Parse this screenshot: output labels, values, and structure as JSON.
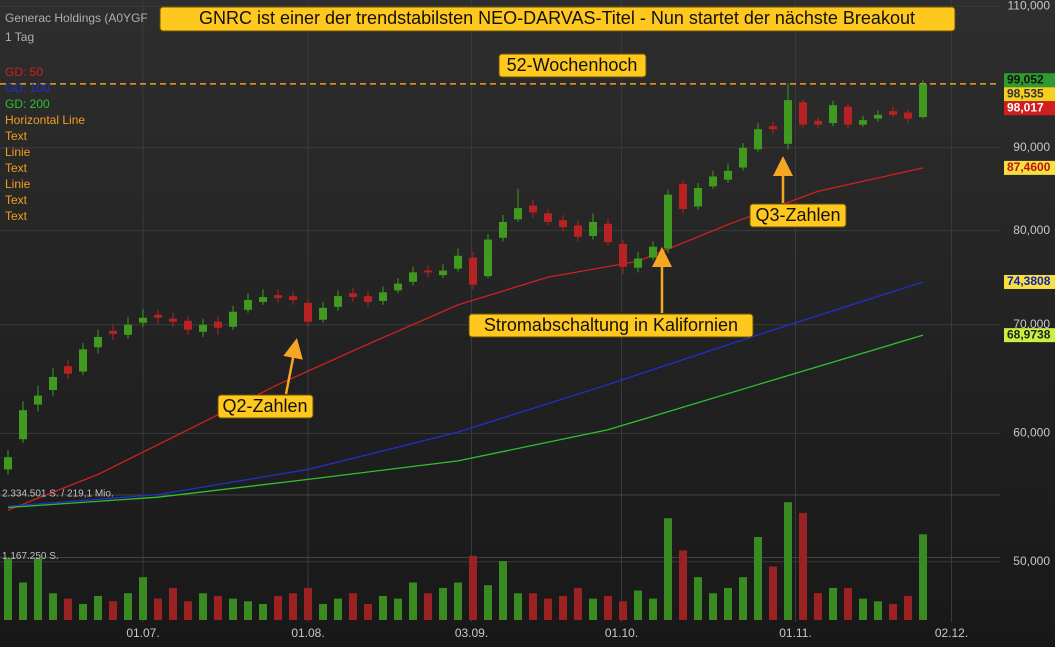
{
  "chart_data": {
    "type": "candlestick",
    "title": "GNRC ist einer der trendstabilsten NEO-DARVAS-Titel - Nun startet der nächste Breakout",
    "instrument": "Generac Holdings (A0YGF",
    "interval": "1 Tag",
    "log_scale": true,
    "grid": true,
    "ylim": [
      45.9,
      111
    ],
    "yticks": [
      {
        "value": 110,
        "label": "110,000"
      },
      {
        "value": 90,
        "label": "90,000"
      },
      {
        "value": 80,
        "label": "80,000"
      },
      {
        "value": 70,
        "label": "70,000"
      },
      {
        "value": 60,
        "label": "60,000"
      },
      {
        "value": 50,
        "label": "50,000"
      }
    ],
    "xticks": [
      {
        "value": 9,
        "label": "01.07."
      },
      {
        "value": 20,
        "label": "01.08."
      },
      {
        "value": 30.9,
        "label": "03.09."
      },
      {
        "value": 40.9,
        "label": "01.10."
      },
      {
        "value": 52.5,
        "label": "01.11."
      },
      {
        "value": 62.9,
        "label": "02.12."
      }
    ],
    "up_color": "#3f9a1f",
    "down_color": "#b82222",
    "open": [
      57.0,
      59.5,
      62.5,
      63.8,
      66.0,
      65.5,
      67.8,
      69.4,
      69.0,
      70.2,
      71.0,
      70.6,
      70.4,
      69.3,
      70.3,
      69.8,
      71.5,
      72.3,
      73.0,
      72.9,
      72.2,
      70.5,
      71.8,
      73.2,
      72.9,
      72.4,
      73.5,
      74.4,
      75.6,
      75.1,
      75.8,
      77.0,
      75.0,
      79.2,
      81.3,
      82.9,
      82.0,
      81.2,
      80.6,
      79.4,
      80.8,
      78.5,
      75.9,
      77.0,
      78.0,
      85.5,
      82.8,
      85.2,
      86.0,
      87.5,
      89.8,
      92.8,
      90.5,
      96.0,
      93.5,
      93.2,
      95.4,
      93.0,
      93.8,
      94.8,
      94.6,
      94.0
    ],
    "high": [
      58.6,
      62.8,
      64.2,
      65.8,
      66.6,
      68.2,
      69.5,
      70.0,
      70.8,
      71.6,
      71.5,
      71.2,
      70.8,
      70.6,
      70.8,
      71.9,
      73.2,
      73.6,
      73.6,
      73.4,
      72.6,
      72.3,
      73.5,
      73.8,
      73.4,
      73.9,
      74.8,
      76.0,
      76.2,
      76.3,
      78.0,
      77.6,
      79.6,
      81.8,
      84.9,
      83.6,
      82.5,
      81.8,
      81.2,
      82.0,
      81.4,
      78.9,
      77.6,
      78.8,
      84.8,
      86.0,
      85.6,
      87.1,
      88.0,
      90.6,
      93.2,
      93.4,
      98.6,
      96.4,
      94.0,
      96.2,
      95.9,
      94.2,
      94.9,
      95.4,
      95.0,
      99.052
    ],
    "low": [
      56.6,
      59.2,
      61.9,
      63.3,
      64.8,
      65.2,
      67.2,
      68.5,
      68.6,
      69.8,
      70.1,
      69.8,
      69.0,
      68.8,
      69.0,
      69.5,
      71.2,
      72.0,
      72.2,
      72.0,
      69.8,
      70.2,
      71.4,
      72.3,
      71.8,
      72.0,
      73.2,
      74.0,
      74.9,
      74.8,
      75.5,
      73.6,
      74.8,
      78.8,
      81.0,
      81.5,
      80.6,
      79.9,
      78.8,
      79.0,
      78.3,
      75.2,
      75.4,
      76.7,
      77.5,
      82.0,
      82.4,
      84.9,
      85.6,
      87.1,
      89.5,
      91.8,
      89.8,
      92.6,
      92.5,
      92.8,
      92.6,
      92.7,
      93.4,
      94.0,
      93.2,
      93.8
    ],
    "close": [
      58.0,
      62.0,
      63.3,
      65.0,
      65.3,
      67.6,
      68.8,
      69.1,
      70.0,
      70.7,
      70.7,
      70.3,
      69.5,
      70.0,
      69.7,
      71.3,
      72.5,
      72.8,
      72.7,
      72.5,
      70.3,
      71.7,
      72.9,
      72.8,
      72.3,
      73.3,
      74.2,
      75.4,
      75.4,
      75.6,
      77.2,
      74.1,
      79.0,
      81.0,
      82.6,
      82.1,
      81.0,
      80.4,
      79.3,
      81.0,
      78.7,
      76.0,
      76.9,
      78.2,
      84.2,
      82.5,
      85.0,
      86.4,
      87.1,
      90.0,
      92.4,
      92.4,
      96.3,
      93.0,
      93.0,
      95.6,
      93.0,
      93.6,
      94.3,
      94.3,
      93.8,
      98.5
    ],
    "volume": {
      "values": [
        1150000,
        700000,
        1150000,
        500000,
        400000,
        300000,
        450000,
        350000,
        500000,
        800000,
        400000,
        600000,
        350000,
        500000,
        450000,
        400000,
        350000,
        300000,
        450000,
        500000,
        600000,
        300000,
        400000,
        500000,
        300000,
        450000,
        400000,
        700000,
        500000,
        600000,
        700000,
        1200000,
        650000,
        1100000,
        500000,
        500000,
        400000,
        450000,
        600000,
        400000,
        450000,
        350000,
        550000,
        400000,
        1900000,
        1300000,
        800000,
        500000,
        600000,
        800000,
        1550000,
        1000000,
        2200000,
        2000000,
        500000,
        600000,
        600000,
        400000,
        350000,
        300000,
        450000,
        1600000
      ],
      "ylim": [
        0,
        2334501
      ],
      "yticks": [
        {
          "value": 2334501,
          "label": "2.334.501 S. / 219,1 Mio."
        },
        {
          "value": 1167250,
          "label": "1.167.250 S."
        }
      ],
      "up_color": "#3a8a22",
      "down_color": "#9a2222"
    },
    "series": [
      {
        "name": "GD: 50",
        "color": "#d02020",
        "x": [
          0,
          6,
          12,
          18,
          24,
          30,
          36,
          42,
          48,
          54,
          61
        ],
        "values": [
          53.8,
          56.6,
          60.3,
          64.3,
          68.1,
          72.0,
          74.9,
          76.6,
          80.7,
          84.6,
          87.46
        ]
      },
      {
        "name": "GD: 100",
        "color": "#2030c8",
        "x": [
          0,
          10,
          20,
          30,
          40,
          50,
          61
        ],
        "values": [
          54.1,
          55.0,
          57.0,
          60.1,
          64.3,
          69.0,
          74.3808
        ]
      },
      {
        "name": "GD: 200",
        "color": "#30c030",
        "x": [
          0,
          10,
          20,
          30,
          40,
          50,
          61
        ],
        "values": [
          54.0,
          54.8,
          56.2,
          57.7,
          60.3,
          64.3,
          68.9738
        ]
      }
    ],
    "horizontal_line": {
      "name": "Horizontal Line",
      "value": 98.535,
      "color": "#f0a020"
    },
    "drawing_tools": [
      "Text",
      "Linie",
      "Text",
      "Linie",
      "Text",
      "Text"
    ],
    "price_tags": [
      {
        "value": 99.052,
        "label": "99,052",
        "bg": "#2f9a2f",
        "fg": "#111111"
      },
      {
        "value": 98.535,
        "label": "98,535",
        "bg": "#f5d020",
        "fg": "#333333"
      },
      {
        "value": 98.017,
        "label": "98,017",
        "bg": "#d01e1e",
        "fg": "#ffffff"
      },
      {
        "value": 87.46,
        "label": "87,4600",
        "bg": "#f5e040",
        "fg": "#c01010"
      },
      {
        "value": 74.3808,
        "label": "74,3808",
        "bg": "#f5e040",
        "fg": "#1020b0"
      },
      {
        "value": 68.9738,
        "label": "68,9738",
        "bg": "#c8f040",
        "fg": "#222222"
      }
    ],
    "annotations": [
      "52-Wochenhoch",
      "Q2-Zahlen",
      "Stromabschaltung in Kalifornien",
      "Q3-Zahlen"
    ]
  }
}
